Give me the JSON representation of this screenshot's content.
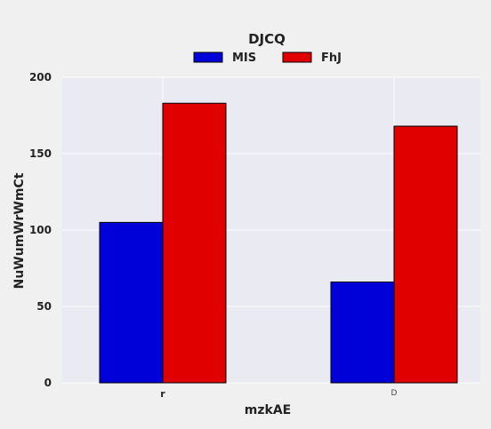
{
  "chart_data": {
    "type": "bar",
    "title": "DJCQ",
    "xlabel": "mzkAE",
    "ylabel": "NuWumWrWmCt",
    "categories": [
      "r",
      "D"
    ],
    "series": [
      {
        "name": "MIS",
        "values": [
          105,
          66
        ],
        "color": "#0000d8"
      },
      {
        "name": "FhJ",
        "values": [
          183,
          168
        ],
        "color": "#e00000"
      }
    ],
    "ylim": [
      0,
      200
    ],
    "yticks": [
      0,
      50,
      100,
      150,
      200
    ],
    "grid": true,
    "legend": "top-center",
    "background": "#eaeaf2"
  }
}
